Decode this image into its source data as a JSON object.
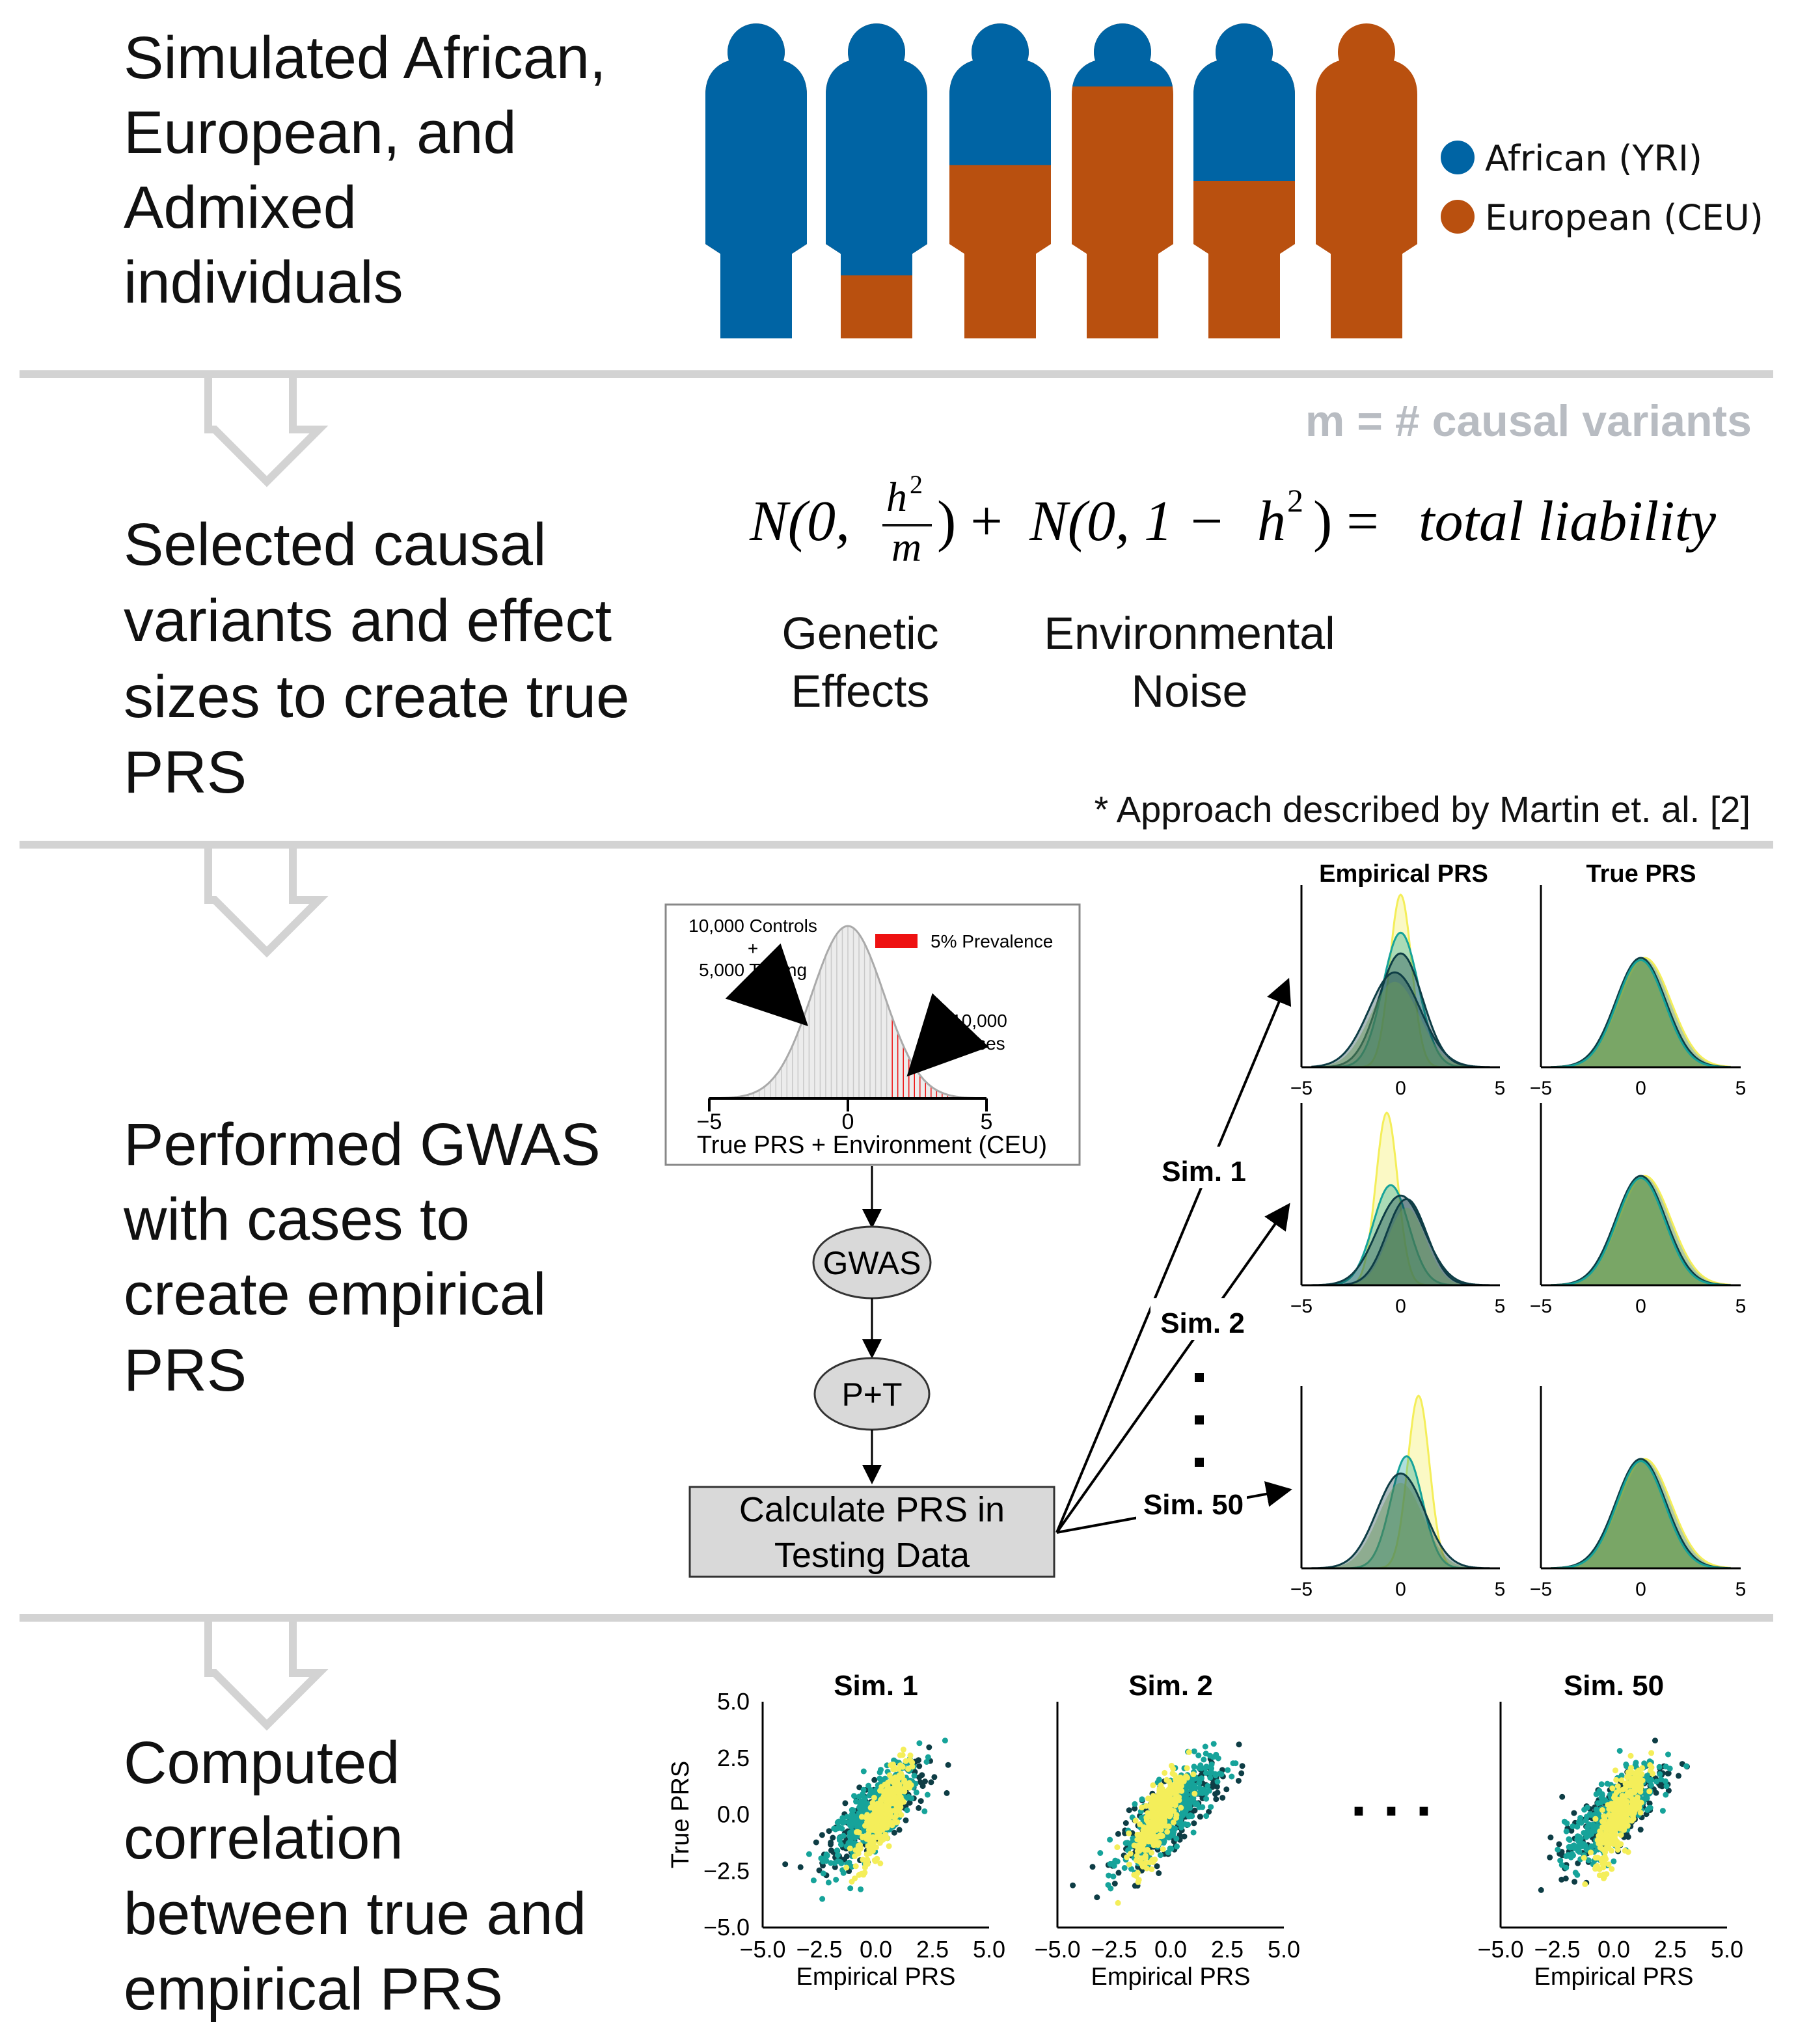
{
  "colors": {
    "african": "#0064a4",
    "european": "#b9500f",
    "divider": "#d3d3d3",
    "causal_label": "#b8bcc2",
    "red": "#ee1111",
    "yellow": "#f4ee5a",
    "teal": "#16a39a",
    "dark": "#0e3d45",
    "green": "#6b9c58",
    "box": "#d9d9d9"
  },
  "steps": {
    "s1": [
      "Simulated African,",
      "European, and",
      "Admixed",
      "individuals"
    ],
    "s2": [
      "Selected causal",
      "variants and effect",
      "sizes to create true",
      "PRS"
    ],
    "s3": [
      "Performed GWAS",
      "with cases to",
      "create empirical",
      "PRS"
    ],
    "s4": [
      "Computed",
      "correlation",
      "between true and",
      "empirical PRS"
    ]
  },
  "people": {
    "african_fraction": [
      1.0,
      0.8,
      0.45,
      0.2,
      0.5,
      0.0
    ]
  },
  "legend": {
    "african": "African (YRI)",
    "european": "European (CEU)"
  },
  "formula": {
    "causal_label": "m = # causal variants",
    "N1": "N(0,",
    "h2": "h",
    "sup2": "2",
    "m": "m",
    "plus": ") + ",
    "N2": "N(0, 1 − ",
    "close": ") = ",
    "total": "total liability",
    "genetic": [
      "Genetic",
      "Effects"
    ],
    "environmental": [
      "Environmental",
      "Noise"
    ],
    "citation": "* Approach described by Martin et. al. [2]"
  },
  "liability_plot": {
    "controls": [
      "10,000 Controls",
      "+",
      "5,000 Testing"
    ],
    "cases": [
      "10,000",
      "Cases"
    ],
    "prevalence": "5% Prevalence",
    "xlabel": "True PRS + Environment (CEU)",
    "ticks": [
      "−5",
      "0",
      "5"
    ]
  },
  "pipeline": {
    "gwas": "GWAS",
    "pt": "P+T",
    "calc": [
      "Calculate PRS in",
      "Testing Data"
    ]
  },
  "sims": {
    "sim1": "Sim. 1",
    "sim2": "Sim. 2",
    "sim50": "Sim. 50"
  },
  "density": {
    "col1": "Empirical PRS",
    "col2": "True PRS",
    "ticks": [
      "−5",
      "0",
      "5"
    ]
  },
  "scatter": {
    "titles": [
      "Sim. 1",
      "Sim. 2",
      "Sim. 50"
    ],
    "ylabel": "True PRS",
    "xlabel": "Empirical PRS",
    "yticks": [
      "5.0",
      "2.5",
      "0.0",
      "−2.5",
      "−5.0"
    ],
    "xticks": [
      "−5.0",
      "−2.5",
      "0.0",
      "2.5",
      "5.0"
    ],
    "dots": ". . ."
  }
}
